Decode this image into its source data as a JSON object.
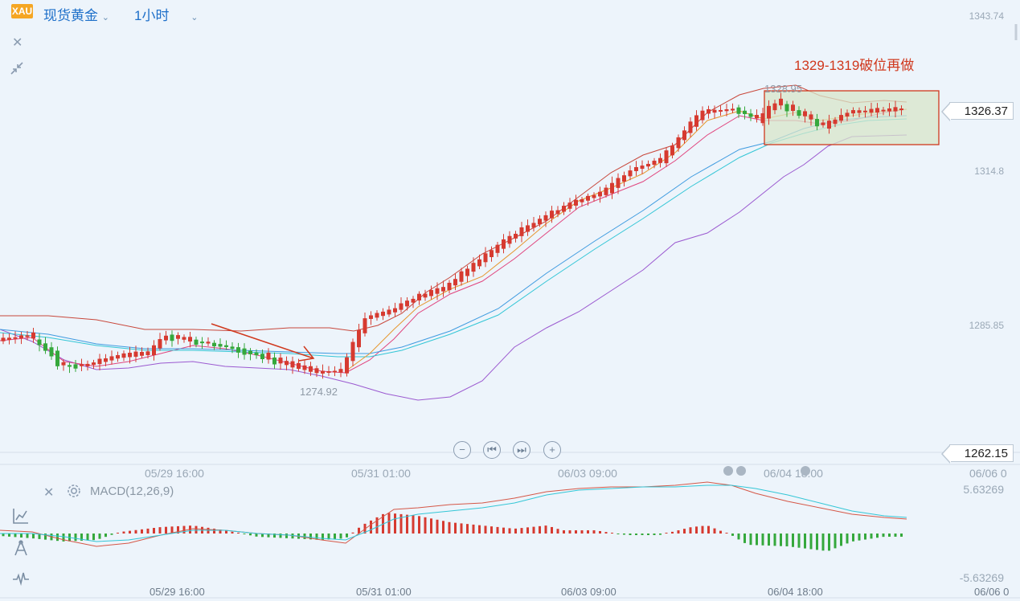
{
  "header": {
    "symbol_badge": "XAU",
    "symbol_name": "现货黄金",
    "interval": "1小时"
  },
  "price_axis": {
    "labels": [
      "1343.74",
      "1314.8",
      "1285.85"
    ],
    "current_price": "1326.37",
    "bottom_price": "1262.15"
  },
  "time_axis": {
    "labels": [
      "05/29 16:00",
      "05/31 01:00",
      "06/03 09:00",
      "06/04 18:00",
      "06/06 0"
    ]
  },
  "annotation": {
    "text": "1329-1319破位再做",
    "high_marker": "1328.95",
    "low_marker": "1274.92"
  },
  "macd": {
    "label": "MACD(12,26,9)",
    "upper": "5.63269",
    "lower": "-5.63269"
  },
  "colors": {
    "up_candle": "#d63a30",
    "down_candle": "#35a83c",
    "boll_upper": "#c8473b",
    "boll_lower": "#9b59d0",
    "ma_short": "#e0457e",
    "ma_long1": "#3f9be0",
    "ma_long2": "#33c6d6",
    "accent": "#1d6fc9"
  },
  "icons": [
    "close-icon",
    "collapse-icon",
    "zoom-out-icon",
    "prev-icon",
    "next-icon",
    "zoom-in-icon",
    "settings-icon",
    "indicator-icon",
    "drawing-icon",
    "pulse-icon"
  ]
}
